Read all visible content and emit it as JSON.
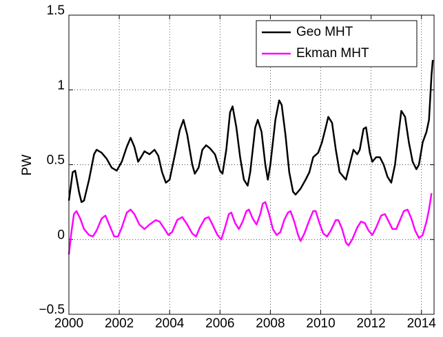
{
  "chart_data": {
    "type": "line",
    "ylabel": "PW",
    "xlim": [
      2000,
      2014.5
    ],
    "xticks": [
      2000,
      2002,
      2004,
      2006,
      2008,
      2010,
      2012,
      2014
    ],
    "ylim": [
      -0.5,
      1.5
    ],
    "yticks": [
      {
        "value": -0.5,
        "label": "−0.5"
      },
      0,
      0.5,
      1,
      1.5
    ],
    "grid": true,
    "legend": "upper right",
    "series": [
      {
        "name": "Geo MHT",
        "color": "#000000",
        "x": [
          2000.0,
          2000.15,
          2000.25,
          2000.4,
          2000.5,
          2000.6,
          2000.8,
          2001.0,
          2001.1,
          2001.3,
          2001.5,
          2001.7,
          2001.9,
          2002.1,
          2002.3,
          2002.45,
          2002.6,
          2002.75,
          2002.9,
          2003.0,
          2003.2,
          2003.4,
          2003.55,
          2003.7,
          2003.85,
          2004.0,
          2004.2,
          2004.4,
          2004.55,
          2004.7,
          2004.9,
          2005.0,
          2005.15,
          2005.3,
          2005.45,
          2005.6,
          2005.8,
          2006.0,
          2006.1,
          2006.25,
          2006.4,
          2006.5,
          2006.65,
          2006.8,
          2006.95,
          2007.1,
          2007.2,
          2007.4,
          2007.5,
          2007.65,
          2007.8,
          2007.9,
          2008.0,
          2008.2,
          2008.35,
          2008.45,
          2008.6,
          2008.75,
          2008.9,
          2009.0,
          2009.2,
          2009.4,
          2009.55,
          2009.7,
          2009.9,
          2010.05,
          2010.2,
          2010.3,
          2010.45,
          2010.6,
          2010.75,
          2010.9,
          2011.0,
          2011.15,
          2011.3,
          2011.45,
          2011.55,
          2011.7,
          2011.8,
          2011.95,
          2012.05,
          2012.2,
          2012.35,
          2012.5,
          2012.65,
          2012.8,
          2012.95,
          2013.1,
          2013.2,
          2013.35,
          2013.5,
          2013.65,
          2013.8,
          2013.9,
          2014.05,
          2014.2,
          2014.3,
          2014.4,
          2014.45
        ],
        "values": [
          0.26,
          0.45,
          0.46,
          0.32,
          0.25,
          0.26,
          0.4,
          0.57,
          0.6,
          0.58,
          0.54,
          0.48,
          0.46,
          0.52,
          0.62,
          0.68,
          0.62,
          0.52,
          0.56,
          0.59,
          0.57,
          0.6,
          0.56,
          0.45,
          0.38,
          0.4,
          0.56,
          0.73,
          0.8,
          0.7,
          0.5,
          0.44,
          0.48,
          0.6,
          0.63,
          0.61,
          0.57,
          0.46,
          0.44,
          0.6,
          0.85,
          0.89,
          0.75,
          0.55,
          0.4,
          0.36,
          0.45,
          0.75,
          0.8,
          0.72,
          0.5,
          0.4,
          0.5,
          0.8,
          0.93,
          0.9,
          0.7,
          0.45,
          0.32,
          0.3,
          0.34,
          0.4,
          0.45,
          0.55,
          0.58,
          0.65,
          0.75,
          0.82,
          0.78,
          0.6,
          0.45,
          0.42,
          0.4,
          0.5,
          0.6,
          0.57,
          0.6,
          0.74,
          0.75,
          0.58,
          0.52,
          0.55,
          0.55,
          0.5,
          0.42,
          0.38,
          0.5,
          0.72,
          0.86,
          0.82,
          0.65,
          0.52,
          0.47,
          0.5,
          0.65,
          0.72,
          0.8,
          1.1,
          1.2
        ]
      },
      {
        "name": "Ekman MHT",
        "color": "#ff00ff",
        "x": [
          2000.0,
          2000.1,
          2000.2,
          2000.3,
          2000.45,
          2000.6,
          2000.8,
          2000.95,
          2001.1,
          2001.3,
          2001.45,
          2001.6,
          2001.8,
          2001.95,
          2002.1,
          2002.3,
          2002.45,
          2002.6,
          2002.8,
          2003.0,
          2003.2,
          2003.45,
          2003.6,
          2003.8,
          2003.95,
          2004.1,
          2004.3,
          2004.5,
          2004.7,
          2004.9,
          2005.05,
          2005.2,
          2005.4,
          2005.55,
          2005.7,
          2005.9,
          2006.05,
          2006.2,
          2006.35,
          2006.45,
          2006.6,
          2006.75,
          2006.9,
          2007.05,
          2007.15,
          2007.3,
          2007.45,
          2007.6,
          2007.7,
          2007.8,
          2007.95,
          2008.1,
          2008.25,
          2008.4,
          2008.55,
          2008.7,
          2008.8,
          2008.95,
          2009.1,
          2009.2,
          2009.35,
          2009.55,
          2009.7,
          2009.8,
          2009.95,
          2010.1,
          2010.25,
          2010.4,
          2010.6,
          2010.7,
          2010.85,
          2011.0,
          2011.1,
          2011.25,
          2011.45,
          2011.6,
          2011.75,
          2011.9,
          2012.05,
          2012.2,
          2012.4,
          2012.55,
          2012.7,
          2012.85,
          2013.0,
          2013.15,
          2013.3,
          2013.45,
          2013.6,
          2013.75,
          2013.9,
          2014.05,
          2014.2,
          2014.3,
          2014.4
        ],
        "values": [
          -0.1,
          0.05,
          0.17,
          0.19,
          0.14,
          0.07,
          0.03,
          0.02,
          0.06,
          0.14,
          0.16,
          0.1,
          0.02,
          0.02,
          0.08,
          0.18,
          0.2,
          0.17,
          0.1,
          0.07,
          0.1,
          0.13,
          0.12,
          0.07,
          0.03,
          0.05,
          0.13,
          0.15,
          0.1,
          0.04,
          0.02,
          0.08,
          0.14,
          0.15,
          0.1,
          0.03,
          0.0,
          0.08,
          0.17,
          0.18,
          0.11,
          0.07,
          0.12,
          0.19,
          0.2,
          0.14,
          0.1,
          0.17,
          0.24,
          0.25,
          0.17,
          0.07,
          0.03,
          0.05,
          0.13,
          0.18,
          0.19,
          0.12,
          0.03,
          -0.01,
          0.04,
          0.13,
          0.19,
          0.19,
          0.11,
          0.04,
          0.02,
          0.06,
          0.13,
          0.13,
          0.07,
          -0.02,
          -0.04,
          0.0,
          0.08,
          0.12,
          0.11,
          0.06,
          0.03,
          0.08,
          0.16,
          0.17,
          0.12,
          0.07,
          0.07,
          0.13,
          0.19,
          0.2,
          0.14,
          0.06,
          0.01,
          0.03,
          0.12,
          0.2,
          0.31
        ]
      }
    ]
  }
}
